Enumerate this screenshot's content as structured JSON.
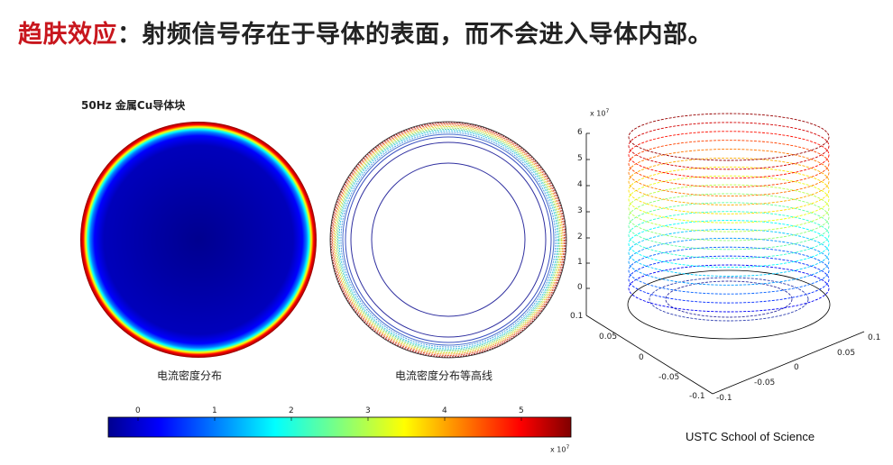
{
  "title": {
    "highlight": "趋肤效应",
    "rest": "：射频信号存在于导体的表面，而不会进入导体内部。"
  },
  "panel_left": {
    "heading": "50Hz 金属Cu导体块",
    "caption": "电流密度分布"
  },
  "panel_mid": {
    "caption": "电流密度分布等高线"
  },
  "colorbar": {
    "ticks": [
      "0",
      "1",
      "2",
      "3",
      "4",
      "5"
    ],
    "multiplier": "x 10",
    "exponent": "7"
  },
  "plot3d": {
    "z_multiplier": "x 10",
    "z_exponent": "7",
    "z_ticks": [
      "6",
      "5",
      "4",
      "3",
      "2",
      "1",
      "0"
    ],
    "left_axis_ticks": [
      "0.1",
      "0.05",
      "0",
      "-0.05",
      "-0.1"
    ],
    "front_axis_ticks": [
      "-0.1",
      "-0.05",
      "0",
      "0.05",
      "0.1"
    ]
  },
  "credit": "USTC School of Science",
  "colors": {
    "accent_red": "#c8161d",
    "jet_low": "#00008f",
    "jet_high": "#800000"
  }
}
